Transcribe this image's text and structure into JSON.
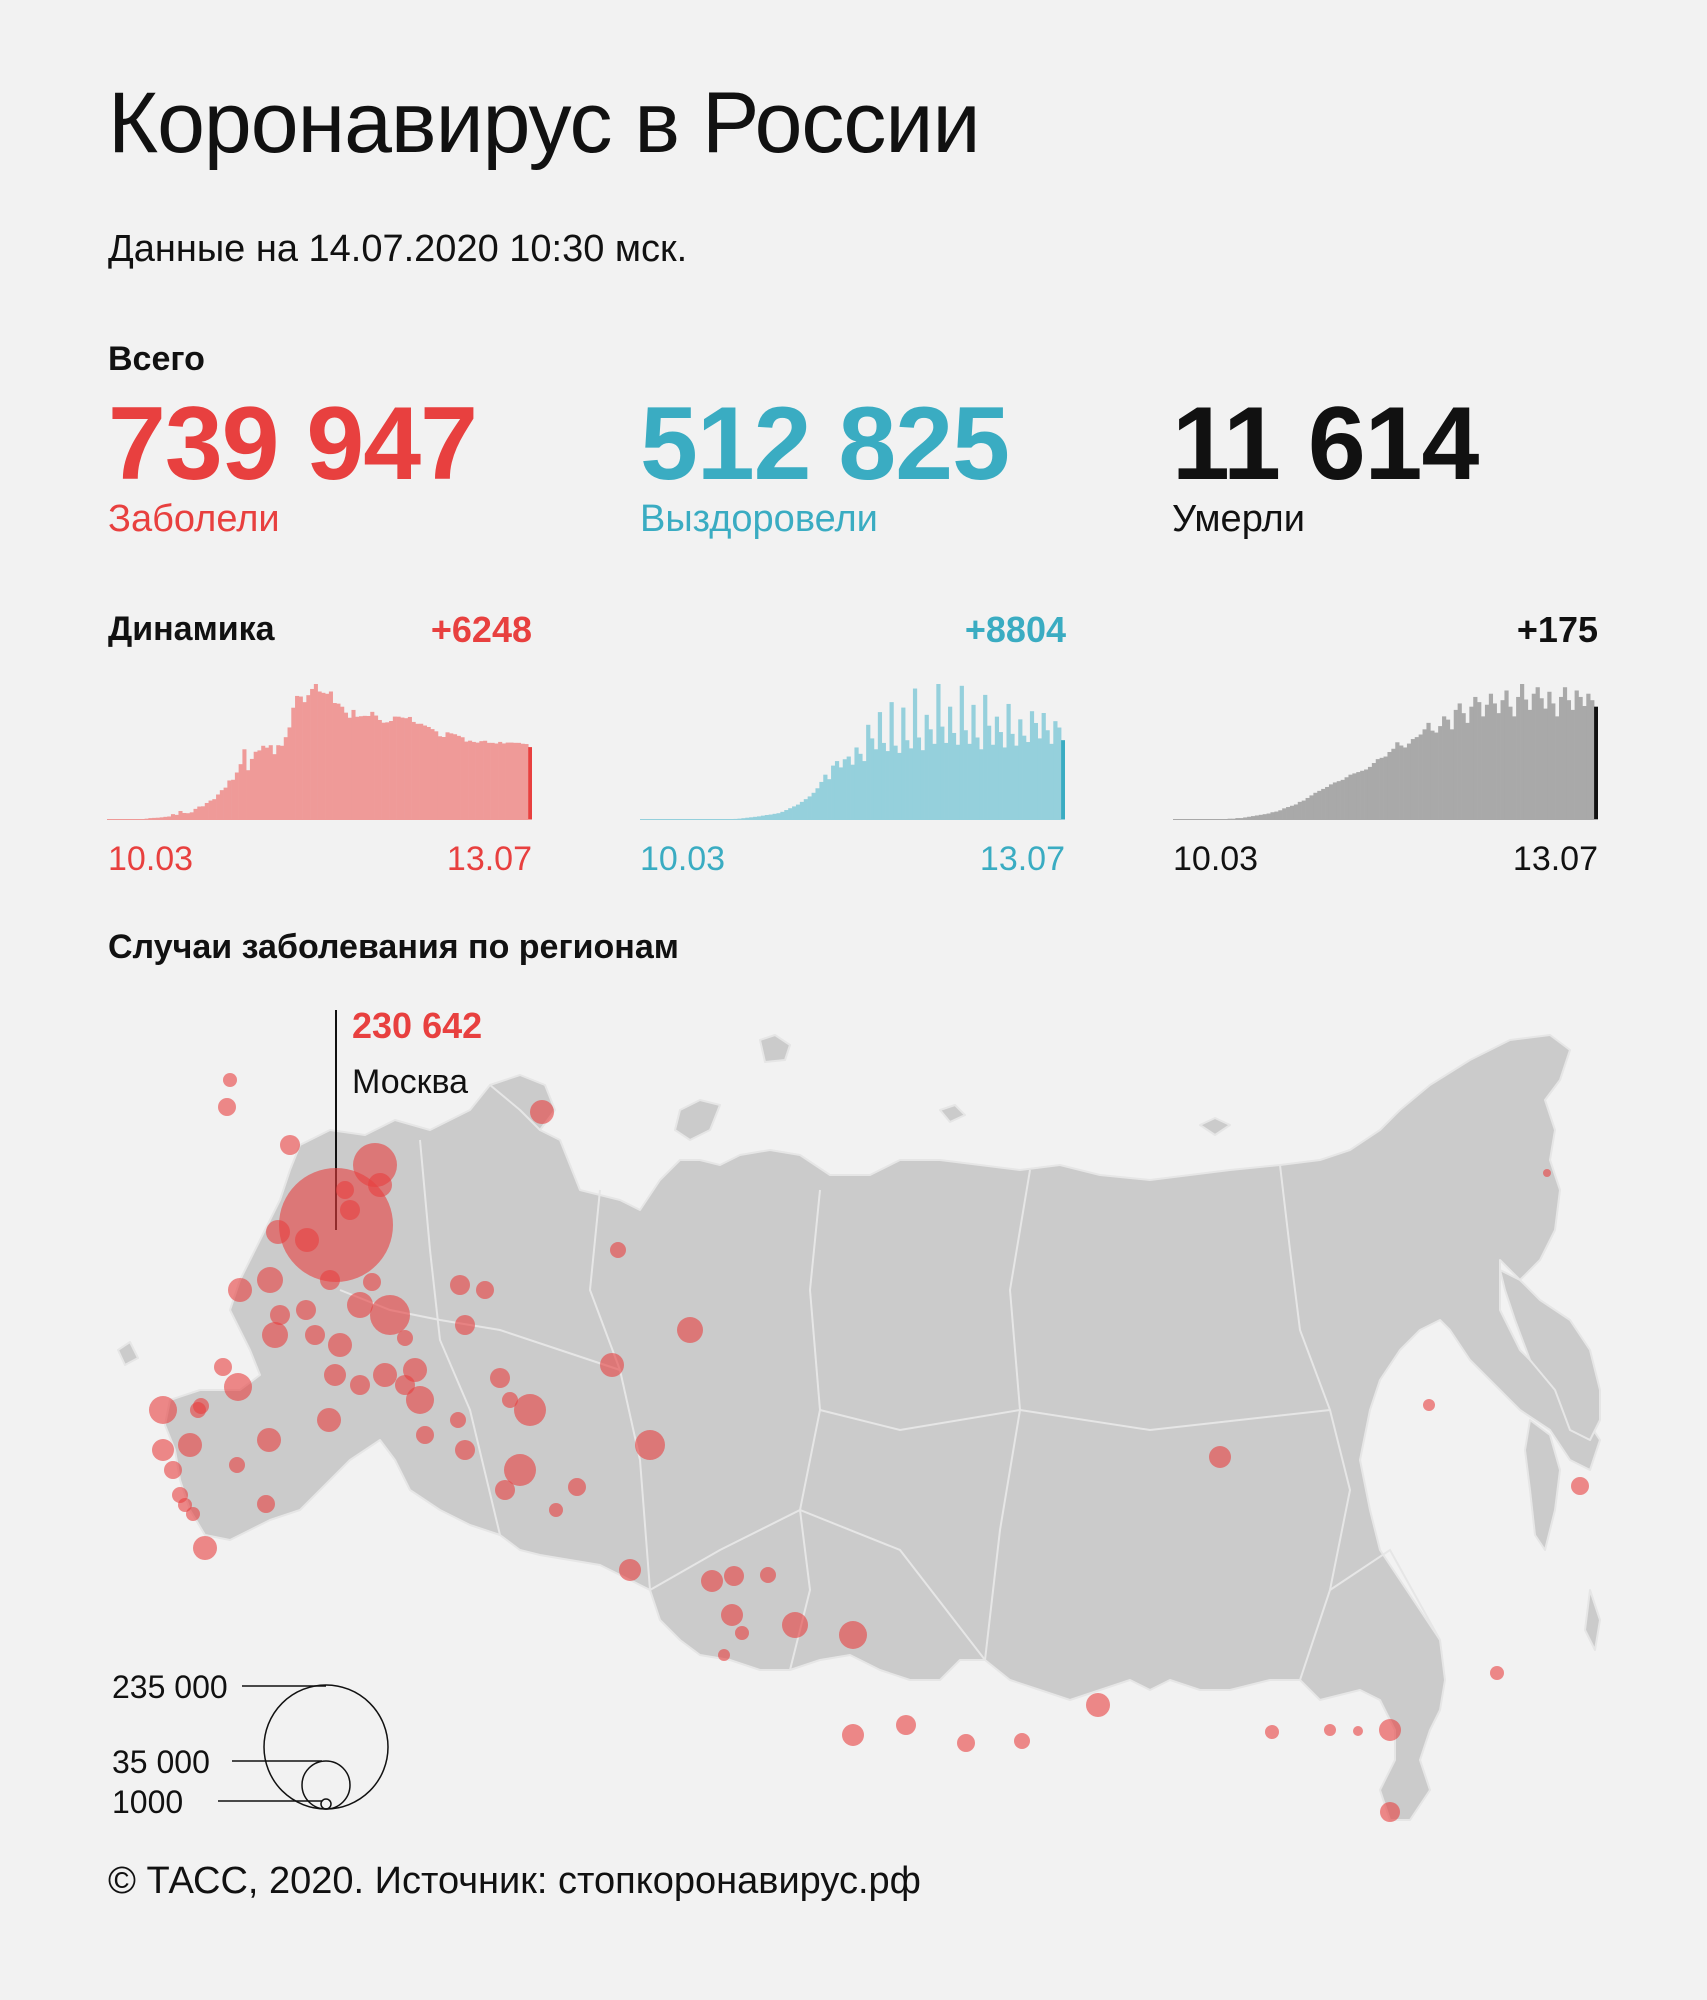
{
  "header": {
    "title": "Коронавирус в России",
    "date_line": "Данные на 14.07.2020 10:30 мск."
  },
  "totals": {
    "label": "Всего",
    "cases": {
      "value": "739 947",
      "caption": "Заболели"
    },
    "recovered": {
      "value": "512 825",
      "caption": "Выздоровели"
    },
    "deaths": {
      "value": "11 614",
      "caption": "Умерли"
    }
  },
  "dynamics": {
    "label": "Динамика",
    "cases_delta": "+6248",
    "recovered_delta": "+8804",
    "deaths_delta": "+175",
    "start_date": "10.03",
    "end_date": "13.07"
  },
  "regions": {
    "title": "Случаи заболевания по регионам",
    "top_region_value": "230 642",
    "top_region_name": "Москва",
    "legend": [
      "235 000",
      "35 000",
      "1000"
    ]
  },
  "footer": "© ТАСС, 2020. Источник: стопкоронавирус.рф",
  "colors": {
    "cases": "#e8403f",
    "cases_bar": "#ef9a98",
    "recovered": "#3aacc2",
    "recovered_bar": "#95d0dc",
    "deaths": "#111111",
    "deaths_bar": "#a9a9a9",
    "map_land": "#cbcbcb",
    "map_dot": "#e8403f"
  },
  "chart_data": [
    {
      "type": "bar",
      "title": "+6248",
      "xlabel": "",
      "ylabel": "",
      "x_range": [
        "10.03",
        "13.07"
      ],
      "series": [
        {
          "name": "Заболели",
          "values": [
            20,
            20,
            28,
            30,
            33,
            45,
            53,
            57,
            58,
            71,
            114,
            163,
            182,
            196,
            228,
            270,
            302,
            501,
            440,
            771,
            601,
            582,
            658,
            954,
            1154,
            1175,
            1459,
            1667,
            1786,
            2186,
            2558,
            2774,
            3388,
            3448,
            4070,
            4785,
            6060,
            4268,
            5236,
            5849,
            5966,
            6361,
            6198,
            6411,
            5642,
            6411,
            6361,
            7099,
            7933,
            9623,
            10633,
            10581,
            10102,
            10699,
            11231,
            11656,
            11012,
            10899,
            10817,
            11012,
            10028,
            9974,
            9709,
            9200,
            8764,
            9434,
            8849,
            8894,
            8926,
            8915,
            9268,
            8952,
            8572,
            8338,
            8371,
            8485,
            8863,
            8855,
            8779,
            8726,
            8831,
            8404,
            8246,
            8248,
            8097,
            7972,
            7790,
            7600,
            7176,
            7113,
            7515,
            7425,
            7350,
            7212,
            7092,
            6719,
            6800,
            6693,
            6632,
            6760,
            6791,
            6615,
            6611,
            6556,
            6693,
            6562,
            6635,
            6635,
            6615,
            6611,
            6537,
            6509,
            6248
          ]
        }
      ]
    },
    {
      "type": "bar",
      "title": "+8804",
      "xlabel": "",
      "ylabel": "",
      "x_range": [
        "10.03",
        "13.07"
      ],
      "series": [
        {
          "name": "Выздоровели",
          "values": [
            0,
            0,
            0,
            0,
            0,
            0,
            0,
            0,
            0,
            0,
            5,
            1,
            1,
            4,
            6,
            8,
            10,
            15,
            28,
            35,
            45,
            60,
            70,
            90,
            120,
            150,
            200,
            250,
            300,
            350,
            400,
            480,
            550,
            600,
            680,
            750,
            900,
            1100,
            1300,
            1500,
            1700,
            2000,
            2300,
            2600,
            3000,
            3500,
            4200,
            5000,
            4500,
            6000,
            6500,
            5800,
            6700,
            7000,
            6100,
            8000,
            7300,
            6500,
            10500,
            9000,
            7800,
            11900,
            8500,
            7600,
            13000,
            8200,
            7400,
            12400,
            8800,
            7900,
            14500,
            9100,
            7700,
            11600,
            10000,
            8400,
            15000,
            10300,
            8500,
            12500,
            9600,
            8300,
            14800,
            9900,
            8400,
            12700,
            9100,
            7800,
            13800,
            10400,
            8300,
            11400,
            9700,
            8000,
            12800,
            9500,
            8200,
            11100,
            9300,
            8600,
            12000,
            10700,
            9000,
            11800,
            9900,
            8400,
            10900,
            10200,
            8804
          ]
        }
      ]
    },
    {
      "type": "bar",
      "title": "+175",
      "xlabel": "",
      "ylabel": "",
      "x_range": [
        "10.03",
        "13.07"
      ],
      "series": [
        {
          "name": "Умерли",
          "values": [
            0,
            0,
            0,
            0,
            0,
            0,
            0,
            0,
            0,
            0,
            1,
            0,
            1,
            1,
            2,
            2,
            3,
            3,
            4,
            5,
            6,
            7,
            8,
            9,
            10,
            12,
            13,
            15,
            18,
            20,
            22,
            24,
            28,
            30,
            34,
            38,
            42,
            45,
            48,
            51,
            55,
            58,
            60,
            62,
            66,
            70,
            72,
            74,
            76,
            78,
            82,
            88,
            94,
            96,
            98,
            105,
            110,
            120,
            115,
            112,
            118,
            125,
            128,
            132,
            140,
            150,
            138,
            135,
            145,
            160,
            155,
            140,
            170,
            180,
            165,
            150,
            175,
            190,
            182,
            160,
            178,
            195,
            180,
            165,
            185,
            200,
            175,
            160,
            190,
            210,
            186,
            170,
            195,
            205,
            188,
            172,
            198,
            180,
            160,
            190,
            205,
            185,
            170,
            200,
            190,
            176,
            195,
            185,
            175
          ]
        }
      ]
    }
  ]
}
